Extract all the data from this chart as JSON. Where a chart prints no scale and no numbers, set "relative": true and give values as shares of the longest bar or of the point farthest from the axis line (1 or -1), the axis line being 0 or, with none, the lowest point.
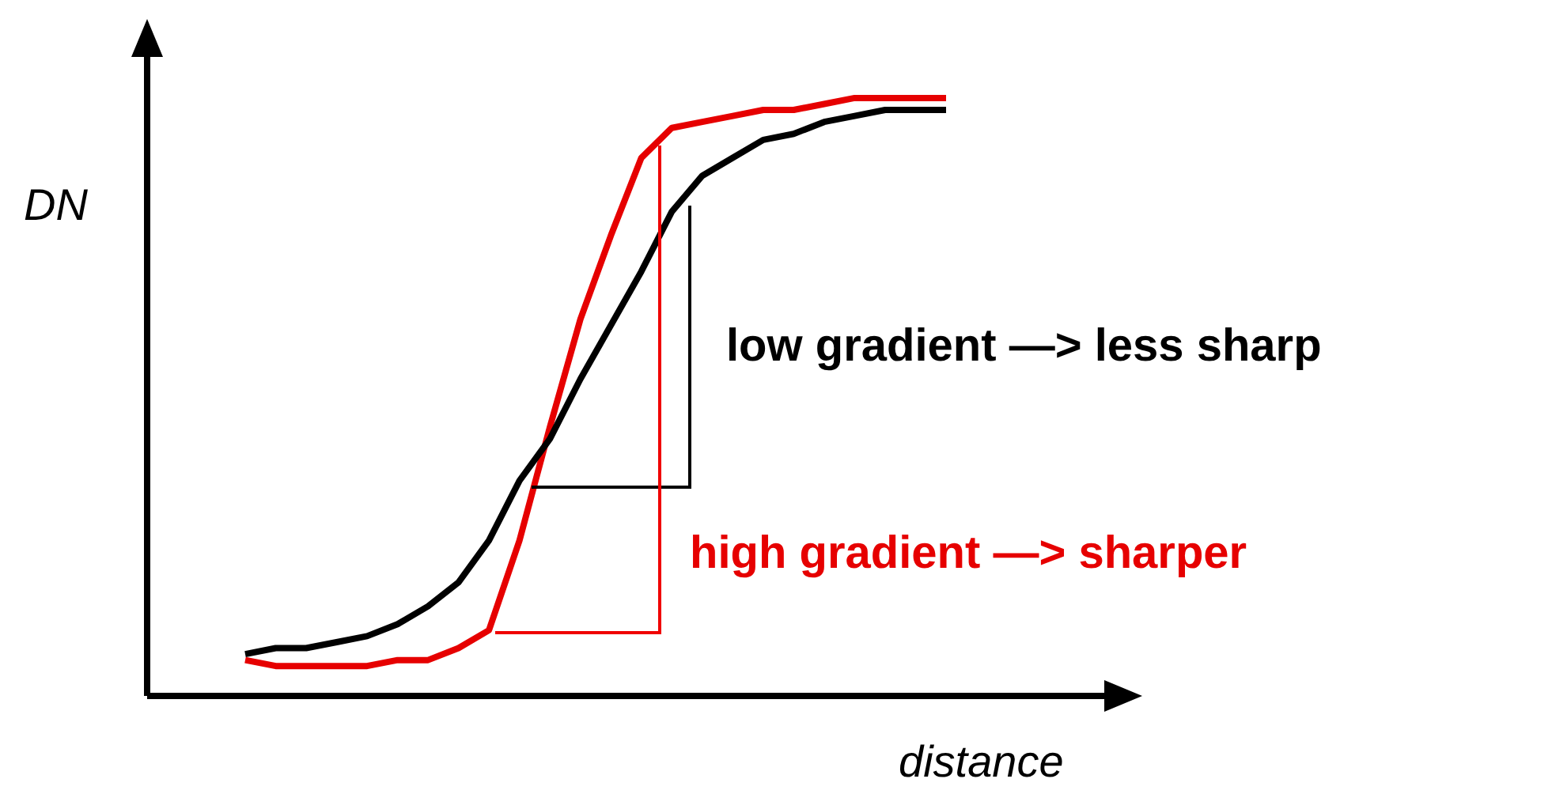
{
  "chart_data": {
    "type": "line",
    "relative": true,
    "xlabel": "distance",
    "ylabel": "DN",
    "legend": false,
    "categories": [
      null,
      null,
      null,
      null,
      null,
      null,
      null,
      null,
      null,
      null,
      null,
      null,
      null,
      null,
      null,
      null,
      null,
      null,
      null,
      null,
      null,
      null,
      null,
      null
    ],
    "series": [
      {
        "color": "#000000",
        "values": [
          0.07,
          0.08,
          0.08,
          0.09,
          0.1,
          0.12,
          0.15,
          0.19,
          0.26,
          0.36,
          0.43,
          0.53,
          0.62,
          0.71,
          0.81,
          0.87,
          0.9,
          0.93,
          0.94,
          0.96,
          0.97,
          0.98,
          0.98,
          0.98
        ]
      },
      {
        "color": "#e60000",
        "values": [
          0.06,
          0.05,
          0.05,
          0.05,
          0.05,
          0.06,
          0.06,
          0.08,
          0.11,
          0.26,
          0.45,
          0.63,
          0.77,
          0.9,
          0.95,
          0.96,
          0.97,
          0.98,
          0.98,
          0.99,
          1.0,
          1.0,
          1.0,
          1.0
        ]
      }
    ],
    "annotations": [
      "low gradient —> less sharp",
      "high gradient —> sharper"
    ]
  }
}
